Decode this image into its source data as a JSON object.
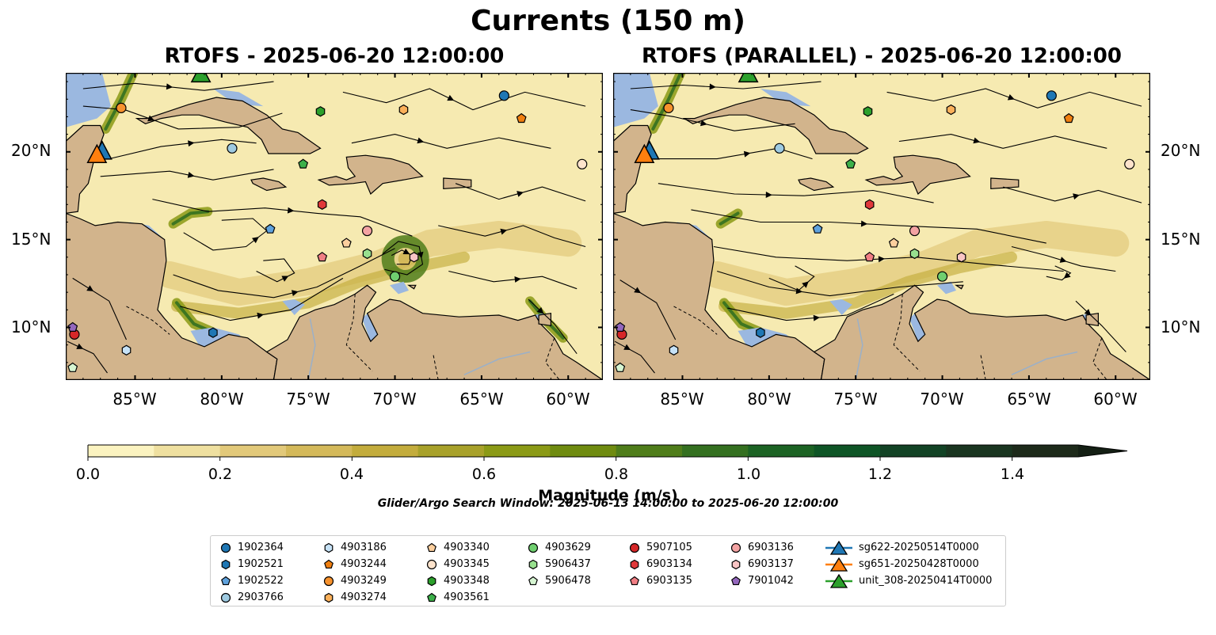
{
  "title": "Currents (150 m)",
  "panels": [
    {
      "title": "RTOFS - 2025-06-20 12:00:00"
    },
    {
      "title": "RTOFS (PARALLEL) - 2025-06-20 12:00:00"
    }
  ],
  "map": {
    "lon_range": [
      -89,
      -58
    ],
    "lat_range": [
      7,
      24.5
    ],
    "x_ticks": [
      "85°W",
      "80°W",
      "75°W",
      "70°W",
      "65°W",
      "60°W"
    ],
    "y_ticks": [
      "20°N",
      "15°N",
      "10°N"
    ],
    "colors": {
      "land": "#d2b48c",
      "shallow_water": "#9bb8e0",
      "coast": "#000000"
    }
  },
  "colorbar": {
    "label": "Magnitude (m/s)",
    "ticks": [
      "0.0",
      "0.2",
      "0.4",
      "0.6",
      "0.8",
      "1.0",
      "1.2",
      "1.4"
    ],
    "range": [
      0,
      1.5
    ],
    "extend": "max",
    "colors": [
      "#fbf3c0",
      "#efe0a0",
      "#e2c97a",
      "#d4b95a",
      "#c3ac3c",
      "#a8a12a",
      "#8b9a16",
      "#6f8b10",
      "#4f7d1a",
      "#347020",
      "#1c6324",
      "#0e5526",
      "#124325",
      "#1a3520",
      "#1d2a1a"
    ]
  },
  "search_window": "Glider/Argo Search Window: 2025-06-13 14:00:00 to 2025-06-20 12:00:00",
  "legend": {
    "location": "lower center",
    "columns": [
      [
        {
          "label": "1902364",
          "marker": "circle",
          "color": "#1f77b4"
        },
        {
          "label": "1902521",
          "marker": "hexagon",
          "color": "#1f77b4"
        },
        {
          "label": "1902522",
          "marker": "pentagon",
          "color": "#5fa2dd"
        },
        {
          "label": "2903766",
          "marker": "circle",
          "color": "#9ecae1"
        }
      ],
      [
        {
          "label": "4903186",
          "marker": "hexagon",
          "color": "#c6e2f7"
        },
        {
          "label": "4903244",
          "marker": "pentagon",
          "color": "#f07f10"
        },
        {
          "label": "4903249",
          "marker": "circle",
          "color": "#f7922d"
        },
        {
          "label": "4903274",
          "marker": "hexagon",
          "color": "#fbb05a"
        }
      ],
      [
        {
          "label": "4903340",
          "marker": "pentagon",
          "color": "#fdcf9e"
        },
        {
          "label": "4903345",
          "marker": "circle",
          "color": "#fde3cc"
        },
        {
          "label": "4903348",
          "marker": "hexagon",
          "color": "#2ca02c"
        },
        {
          "label": "4903561",
          "marker": "pentagon",
          "color": "#3cb04a"
        }
      ],
      [
        {
          "label": "4903629",
          "marker": "circle",
          "color": "#6fcf6f"
        },
        {
          "label": "5906437",
          "marker": "hexagon",
          "color": "#98e08e"
        },
        {
          "label": "5906478",
          "marker": "pentagon",
          "color": "#d6f5d2"
        }
      ],
      [
        {
          "label": "5907105",
          "marker": "circle",
          "color": "#d62728"
        },
        {
          "label": "6903134",
          "marker": "hexagon",
          "color": "#e0383a"
        },
        {
          "label": "6903135",
          "marker": "pentagon",
          "color": "#f07e84"
        }
      ],
      [
        {
          "label": "6903136",
          "marker": "circle",
          "color": "#f4a3a3"
        },
        {
          "label": "6903137",
          "marker": "hexagon",
          "color": "#fac5c5"
        },
        {
          "label": "7901042",
          "marker": "pentagon",
          "color": "#9467bd"
        }
      ],
      [
        {
          "label": "sg622-20250514T0000",
          "marker": "triangle",
          "color": "#1f77b4"
        },
        {
          "label": "sg651-20250428T0000",
          "marker": "triangle",
          "color": "#ff7f0e"
        },
        {
          "label": "unit_308-20250414T0000",
          "marker": "triangle",
          "color": "#2ca02c"
        }
      ]
    ]
  },
  "floats": [
    {
      "id": "1902364",
      "lon": -63.7,
      "lat": 23.2,
      "marker": "circle",
      "color": "#1f77b4"
    },
    {
      "id": "1902521",
      "lon": -80.5,
      "lat": 9.7,
      "marker": "hexagon",
      "color": "#1f77b4"
    },
    {
      "id": "1902522",
      "lon": -77.2,
      "lat": 15.6,
      "marker": "pentagon",
      "color": "#5fa2dd"
    },
    {
      "id": "2903766",
      "lon": -79.4,
      "lat": 20.2,
      "marker": "circle",
      "color": "#9ecae1"
    },
    {
      "id": "4903186",
      "lon": -85.5,
      "lat": 8.7,
      "marker": "hexagon",
      "color": "#c6e2f7"
    },
    {
      "id": "4903244",
      "lon": -62.7,
      "lat": 21.9,
      "marker": "pentagon",
      "color": "#f07f10"
    },
    {
      "id": "4903249",
      "lon": -85.8,
      "lat": 22.5,
      "marker": "circle",
      "color": "#f7922d"
    },
    {
      "id": "4903274",
      "lon": -69.5,
      "lat": 22.4,
      "marker": "hexagon",
      "color": "#fbb05a"
    },
    {
      "id": "4903340",
      "lon": -72.8,
      "lat": 14.8,
      "marker": "pentagon",
      "color": "#fdcf9e"
    },
    {
      "id": "4903345",
      "lon": -59.2,
      "lat": 19.3,
      "marker": "circle",
      "color": "#fde3cc"
    },
    {
      "id": "4903348",
      "lon": -74.3,
      "lat": 22.3,
      "marker": "hexagon",
      "color": "#2ca02c"
    },
    {
      "id": "4903561",
      "lon": -75.3,
      "lat": 19.3,
      "marker": "pentagon",
      "color": "#3cb04a"
    },
    {
      "id": "4903629",
      "lon": -70.0,
      "lat": 12.9,
      "marker": "circle",
      "color": "#6fcf6f"
    },
    {
      "id": "5906437",
      "lon": -71.6,
      "lat": 14.2,
      "marker": "hexagon",
      "color": "#98e08e"
    },
    {
      "id": "5906478",
      "lon": -88.6,
      "lat": 7.7,
      "marker": "pentagon",
      "color": "#d6f5d2"
    },
    {
      "id": "5907105",
      "lon": -88.5,
      "lat": 9.6,
      "marker": "circle",
      "color": "#d62728"
    },
    {
      "id": "6903134",
      "lon": -74.2,
      "lat": 17.0,
      "marker": "hexagon",
      "color": "#e0383a"
    },
    {
      "id": "6903135",
      "lon": -74.2,
      "lat": 14.0,
      "marker": "pentagon",
      "color": "#f07e84"
    },
    {
      "id": "6903136",
      "lon": -71.6,
      "lat": 15.5,
      "marker": "circle",
      "color": "#f4a3a3"
    },
    {
      "id": "6903137",
      "lon": -68.9,
      "lat": 14.0,
      "marker": "hexagon",
      "color": "#fac5c5"
    },
    {
      "id": "7901042",
      "lon": -88.6,
      "lat": 10.0,
      "marker": "pentagon",
      "color": "#9467bd"
    }
  ],
  "gliders": [
    {
      "id": "sg622-20250514T0000",
      "lon": -86.9,
      "lat": 20.0,
      "color": "#1f77b4"
    },
    {
      "id": "sg651-20250428T0000",
      "lon": -87.2,
      "lat": 19.8,
      "color": "#ff7f0e"
    },
    {
      "id": "unit_308-20250414T0000",
      "lon": -81.2,
      "lat": 24.4,
      "color": "#2ca02c"
    }
  ]
}
